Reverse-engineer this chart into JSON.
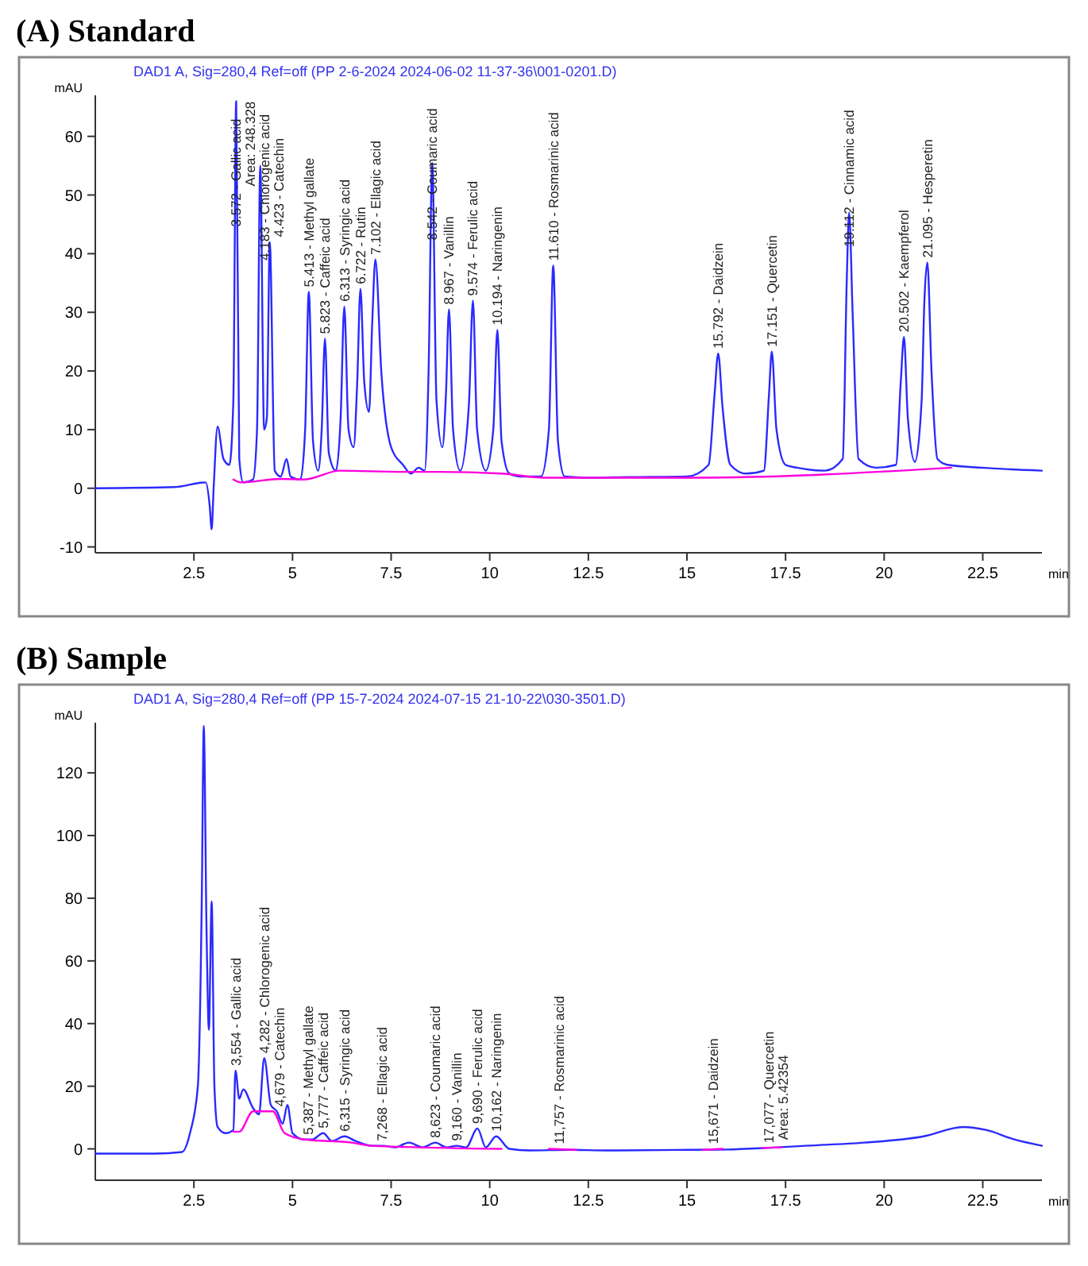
{
  "chart_data": [
    {
      "type": "line",
      "title": "(A) Standard",
      "subtitle": "DAD1 A, Sig=280,4 Ref=off (PP 2-6-2024 2024-06-02 11-37-36\\001-0201.D)",
      "ylabel": "mAU",
      "xlabel": "min",
      "xlim": [
        0,
        24
      ],
      "ylim": [
        -11,
        67
      ],
      "xticks": [
        2.5,
        5,
        7.5,
        10,
        12.5,
        15,
        17.5,
        20,
        22.5
      ],
      "yticks": [
        -10,
        0,
        10,
        20,
        30,
        40,
        50,
        60
      ],
      "series": [
        {
          "color": "#2a2aff",
          "x": [
            0,
            2.0,
            2.8,
            2.9,
            2.95,
            3.0,
            3.1,
            3.25,
            3.4,
            3.5,
            3.572,
            3.65,
            3.75,
            4.0,
            4.1,
            4.183,
            4.28,
            4.35,
            4.423,
            4.55,
            4.7,
            4.85,
            4.95,
            5.2,
            5.32,
            5.413,
            5.52,
            5.65,
            5.74,
            5.823,
            5.92,
            6.1,
            6.22,
            6.313,
            6.42,
            6.55,
            6.64,
            6.722,
            6.82,
            6.94,
            7.02,
            7.102,
            7.25,
            7.5,
            7.8,
            8.0,
            8.2,
            8.35,
            8.45,
            8.542,
            8.65,
            8.8,
            8.89,
            8.967,
            9.07,
            9.25,
            9.47,
            9.574,
            9.68,
            9.9,
            10.09,
            10.194,
            10.3,
            10.5,
            10.8,
            11.3,
            11.5,
            11.61,
            11.73,
            11.9,
            12.5,
            13.5,
            15.0,
            15.55,
            15.7,
            15.792,
            15.9,
            16.1,
            16.5,
            16.95,
            17.08,
            17.151,
            17.27,
            17.5,
            17.8,
            18.5,
            18.95,
            19.05,
            19.112,
            19.2,
            19.35,
            19.8,
            20.3,
            20.42,
            20.502,
            20.6,
            20.78,
            20.95,
            21.02,
            21.095,
            21.2,
            21.35,
            21.6,
            22.5,
            24
          ],
          "values": [
            0,
            0.2,
            1,
            -3,
            -7,
            0,
            10.5,
            5,
            4,
            15,
            66,
            5,
            1,
            1.5,
            10,
            55,
            10,
            12,
            42,
            3,
            2,
            5,
            2,
            1.5,
            10,
            33.5,
            8,
            3,
            10,
            25.5,
            6,
            3,
            12,
            31,
            10,
            7,
            18,
            34,
            18,
            13,
            28,
            39,
            20,
            7,
            4,
            2.5,
            3.5,
            3,
            20,
            55.5,
            15,
            7,
            16,
            30.5,
            10,
            3,
            14,
            32,
            10,
            3,
            10,
            27,
            8,
            2.5,
            2,
            2,
            10,
            38,
            8,
            2,
            1.8,
            1.9,
            2,
            4,
            16,
            23,
            14,
            4,
            2.5,
            3,
            16,
            23.3,
            10,
            4,
            3.5,
            3,
            5,
            35,
            47,
            30,
            5,
            3.5,
            4,
            18,
            25.8,
            12,
            4.5,
            15,
            32,
            38.5,
            20,
            5,
            4,
            3.5,
            3
          ]
        },
        {
          "color": "#ff00dd",
          "x": [
            3.5,
            3.7,
            4.7,
            5.3,
            6.2,
            7.8,
            8.7,
            10.3,
            11.4,
            12.1,
            15.2,
            21.7
          ],
          "values": [
            1.5,
            1,
            1.6,
            1.5,
            3,
            2.8,
            2.8,
            2.5,
            1.8,
            1.8,
            1.8,
            3.5
          ]
        }
      ],
      "annotations": [
        {
          "text": "3.572 - Gallic acid",
          "x": 3.572,
          "y": 66
        },
        "Area: 248.328",
        {
          "text": "4.183 - Chlorogenic acid",
          "x": 4.183,
          "y": 55
        },
        {
          "text": "4.423 - Catechin",
          "x": 4.423,
          "y": 42
        },
        {
          "text": "5.413 - Methyl gallate",
          "x": 5.413,
          "y": 33.5
        },
        {
          "text": "5.823 - Caffeic acid",
          "x": 5.823,
          "y": 25.5
        },
        {
          "text": "6.313 - Syringic acid",
          "x": 6.313,
          "y": 31
        },
        {
          "text": "6.722 - Rutin",
          "x": 6.722,
          "y": 34
        },
        {
          "text": "7.102 - Ellagic acid",
          "x": 7.102,
          "y": 39
        },
        {
          "text": "8.542 - Coumaric acid",
          "x": 8.542,
          "y": 55.5
        },
        {
          "text": "8.967 - Vanillin",
          "x": 8.967,
          "y": 30.5
        },
        {
          "text": "9.574 - Ferulic acid",
          "x": 9.574,
          "y": 32
        },
        {
          "text": "10.194 - Naringenin",
          "x": 10.194,
          "y": 27
        },
        {
          "text": "11.610 - Rosmarinic acid",
          "x": 11.61,
          "y": 38
        },
        {
          "text": "15.792 - Daidzein",
          "x": 15.792,
          "y": 23
        },
        {
          "text": "17.151 - Quercetin",
          "x": 17.151,
          "y": 23.3
        },
        {
          "text": "19.112 - Cinnamic acid",
          "x": 19.112,
          "y": 47
        },
        {
          "text": "20.502 - Kaempferol",
          "x": 20.502,
          "y": 25.8
        },
        {
          "text": "21.095 - Hesperetin",
          "x": 21.095,
          "y": 38.5
        }
      ]
    },
    {
      "type": "line",
      "title": "(B) Sample",
      "subtitle": "DAD1 A, Sig=280,4 Ref=off (PP 15-7-2024 2024-07-15 21-10-22\\030-3501.D)",
      "ylabel": "mAU",
      "xlabel": "min",
      "xlim": [
        0,
        24
      ],
      "ylim": [
        -10,
        136
      ],
      "xticks": [
        2.5,
        5,
        7.5,
        10,
        12.5,
        15,
        17.5,
        20,
        22.5
      ],
      "yticks": [
        0,
        20,
        40,
        60,
        80,
        100,
        120
      ],
      "series": [
        {
          "color": "#2a2aff",
          "x": [
            0,
            1.5,
            2.2,
            2.4,
            2.6,
            2.7,
            2.75,
            2.82,
            2.88,
            2.95,
            3.02,
            3.1,
            3.3,
            3.5,
            3.554,
            3.65,
            3.75,
            4.0,
            4.15,
            4.282,
            4.45,
            4.6,
            4.75,
            4.87,
            5.0,
            5.3,
            5.5,
            5.777,
            6.0,
            6.315,
            6.6,
            7.0,
            7.3,
            7.6,
            7.95,
            8.3,
            8.623,
            8.9,
            9.16,
            9.4,
            9.69,
            9.9,
            10.162,
            10.5,
            11,
            12,
            13,
            15,
            16,
            17,
            18,
            19.5,
            21,
            22,
            22.6,
            23.3,
            24
          ],
          "values": [
            -1.5,
            -1.5,
            -1,
            5,
            20,
            80,
            135,
            70,
            38,
            79,
            20,
            7,
            5,
            6,
            25,
            16,
            19,
            13,
            11,
            29,
            14,
            12,
            8,
            14,
            5,
            3,
            3,
            5,
            2.5,
            4,
            2.5,
            1,
            1,
            0.5,
            2,
            0.5,
            2,
            0.5,
            1,
            0.5,
            6.5,
            0.5,
            4,
            0,
            -0.5,
            -0.3,
            -0.5,
            -0.3,
            -0.2,
            0.3,
            1,
            2,
            4,
            7,
            6,
            3,
            1
          ]
        },
        {
          "color": "#ff00dd",
          "x": [
            3.5,
            3.65,
            4.0,
            4.5,
            4.8,
            5.3,
            6.5,
            7.0,
            10.3,
            null,
            11.5,
            12.2,
            null,
            15.4,
            15.9,
            null,
            16.9,
            17.4
          ],
          "values": [
            5.5,
            5.5,
            12,
            12,
            5,
            3,
            2,
            1,
            0,
            null,
            0,
            -0.3,
            null,
            -0.3,
            0,
            null,
            0.3,
            0.5
          ]
        }
      ],
      "annotations": [
        {
          "text": "3,554 - Gallic acid",
          "x": 3.554,
          "y": 25
        },
        {
          "text": "4,282 - Chlorogenic acid",
          "x": 4.282,
          "y": 29
        },
        {
          "text": "4,679 - Catechin",
          "x": 4.679,
          "y": 12
        },
        {
          "text": "5,387 - Methyl gallate",
          "x": 5.387,
          "y": 3
        },
        {
          "text": "5,777 - Caffeic acid",
          "x": 5.777,
          "y": 5
        },
        {
          "text": "6,315 - Syringic acid",
          "x": 6.315,
          "y": 4
        },
        {
          "text": "7,268 - Ellagic acid",
          "x": 7.268,
          "y": 1
        },
        {
          "text": "8,623 - Coumaric acid",
          "x": 8.623,
          "y": 2
        },
        {
          "text": "9,160 - Vanillin",
          "x": 9.16,
          "y": 1
        },
        {
          "text": "9,690 - Ferulic acid",
          "x": 9.69,
          "y": 6.5
        },
        {
          "text": "10,162 - Naringenin",
          "x": 10.162,
          "y": 4
        },
        {
          "text": "11,757 - Rosmarinic acid",
          "x": 11.757,
          "y": 0
        },
        {
          "text": "15,671 - Daidzein",
          "x": 15.671,
          "y": 0
        },
        {
          "text": "17,077 - Quercetin",
          "x": 17.077,
          "y": 0.3
        },
        "Area: 5.42354"
      ]
    }
  ]
}
